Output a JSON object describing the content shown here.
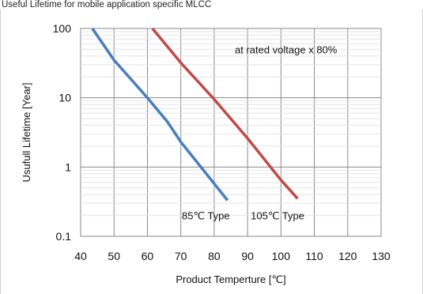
{
  "page": {
    "title": "Useful Lifetime for mobile application specific MLCC"
  },
  "chart_data": {
    "type": "line",
    "title": "",
    "xlabel": "Product Temperture [℃]",
    "ylabel": "Usufull Lifetime [Year]",
    "xlim": [
      40,
      130
    ],
    "ylim": [
      0.1,
      100
    ],
    "y_scale": "log",
    "grid": true,
    "x_ticks": [
      40,
      50,
      60,
      70,
      80,
      90,
      100,
      110,
      120,
      130
    ],
    "y_ticks": [
      0.1,
      1,
      10,
      100
    ],
    "x_tick_labels": [
      "40",
      "50",
      "60",
      "70",
      "80",
      "90",
      "100",
      "110",
      "120",
      "130"
    ],
    "y_tick_labels": [
      "0.1",
      "1",
      "10",
      "100"
    ],
    "series": [
      {
        "name": "85℃ Type",
        "color": "#4a7ebb",
        "points": [
          [
            43.5,
            100
          ],
          [
            50,
            35
          ],
          [
            60,
            10
          ],
          [
            66,
            4.5
          ],
          [
            70,
            2.3
          ],
          [
            84,
            0.33
          ]
        ]
      },
      {
        "name": "105℃ Type",
        "color": "#be4b48",
        "points": [
          [
            61.5,
            100
          ],
          [
            70,
            32
          ],
          [
            80,
            9.5
          ],
          [
            90,
            2.6
          ],
          [
            100,
            0.65
          ],
          [
            105,
            0.35
          ]
        ]
      }
    ],
    "annotations": [
      {
        "text": "at rated voltage x 80%",
        "x": 101.5,
        "y": 50
      },
      {
        "text": "85℃ Type",
        "x": 77.5,
        "y": 0.2
      },
      {
        "text": "105℃ Type",
        "x": 99,
        "y": 0.2
      }
    ]
  }
}
